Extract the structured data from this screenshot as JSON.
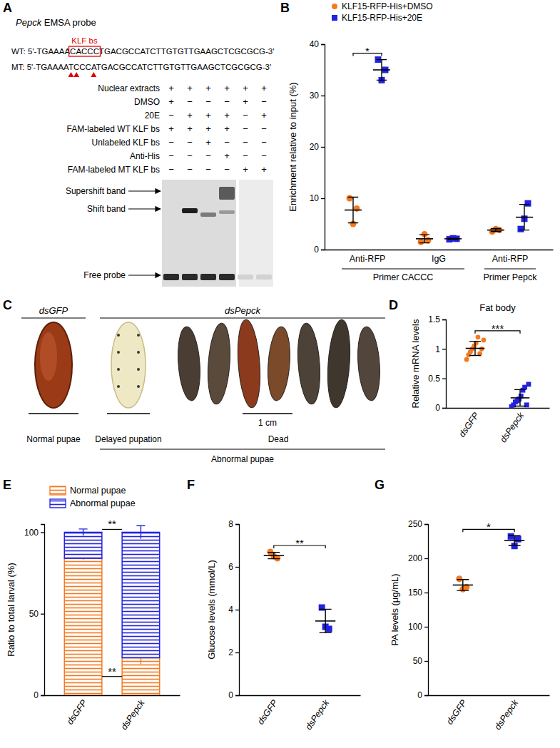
{
  "panel_labels": [
    "A",
    "B",
    "C",
    "D",
    "E",
    "F",
    "G"
  ],
  "panel_a": {
    "probe_title": "Pepck EMSA probe",
    "site_label": "KLF bs",
    "wt": {
      "prefix": "WT: 5'-TGAAAA",
      "site": "CACCC",
      "suffix": "TGACGCCATCTTGTGTTGAAGCTCGCGCG-3'"
    },
    "mt": "MT: 5'-TGAAAATCCCATGACGCCATCTTGTGTTGAAGCTCGCGCG-3'",
    "rows": [
      {
        "label": "Nuclear extracts",
        "lanes": [
          "+",
          "+",
          "+",
          "+",
          "+",
          "+"
        ]
      },
      {
        "label": "DMSO",
        "lanes": [
          "+",
          "−",
          "−",
          "−",
          "+",
          "−"
        ]
      },
      {
        "label": "20E",
        "lanes": [
          "−",
          "+",
          "+",
          "+",
          "−",
          "+"
        ]
      },
      {
        "label": "FAM-labeled WT KLF bs",
        "lanes": [
          "+",
          "+",
          "+",
          "+",
          "−",
          "−"
        ]
      },
      {
        "label": "Unlabeled KLF bs",
        "lanes": [
          "−",
          "−",
          "+",
          "−",
          "−",
          "−"
        ]
      },
      {
        "label": "Anti-His",
        "lanes": [
          "−",
          "−",
          "−",
          "+",
          "−",
          "−"
        ]
      },
      {
        "label": "FAM-labeled MT KLF bs",
        "lanes": [
          "−",
          "−",
          "−",
          "−",
          "+",
          "+"
        ]
      }
    ],
    "bands": [
      "Supershift band",
      "Shift band",
      "Free probe"
    ]
  },
  "panel_c": {
    "groups": [
      "dsGFP",
      "dsPepck"
    ],
    "captions": [
      "Normal pupae",
      "Delayed pupation",
      "Dead"
    ],
    "abnormal": "Abnormal pupae",
    "scale": "1 cm"
  },
  "chart_data": [
    {
      "type": "scatter",
      "ylabel": "Enrichment relative to input (%)",
      "categories": [
        "Anti-RFP",
        "IgG",
        "Anti-RFP"
      ],
      "category_groups": [
        "Primer CACCC",
        "Primer CACCC",
        "Primer Pepck"
      ],
      "ylim": [
        0,
        40
      ],
      "yticks": [
        0,
        10,
        20,
        30,
        40
      ],
      "legend": "top",
      "series": [
        {
          "name": "KLF15-RFP-His+DMSO",
          "color": "#f47920",
          "marker": "circle",
          "values": [
            [
              10,
              5,
              8
            ],
            [
              1.5,
              3,
              1.8
            ],
            [
              3.5,
              4,
              3.8
            ]
          ],
          "mean": [
            7.7,
            2.1,
            3.8
          ],
          "sd": [
            2.5,
            0.8,
            0.3
          ]
        },
        {
          "name": "KLF15-RFP-His+20E",
          "color": "#2222e0",
          "marker": "square",
          "values": [
            [
              37,
              33,
              35
            ],
            [
              2,
              2.2,
              2.1
            ],
            [
              4,
              6,
              9
            ]
          ],
          "mean": [
            35,
            2.1,
            6.3
          ],
          "sd": [
            2,
            0.1,
            2.5
          ]
        }
      ],
      "annotations": [
        {
          "text": "*",
          "category": 0
        }
      ]
    },
    {
      "type": "scatter",
      "title": "Fat body",
      "ylabel": "Relative mRNA levels",
      "categories": [
        "dsGFP",
        "dsPepck"
      ],
      "ylim": [
        0,
        1.5
      ],
      "yticks": [
        0,
        0.5,
        1,
        1.5
      ],
      "series": [
        {
          "color": "#f47920",
          "marker": "circle",
          "values": [
            [
              0.82,
              0.9,
              0.95,
              1.0,
              1.05,
              1.1,
              1.2,
              0.92,
              1.0,
              1.15
            ],
            null
          ],
          "mean": [
            1.01,
            null
          ],
          "sd": [
            0.12,
            null
          ]
        },
        {
          "color": "#2222e0",
          "marker": "square",
          "values": [
            null,
            [
              0.02,
              0.05,
              0.1,
              0.12,
              0.15,
              0.2,
              0.3,
              0.35,
              0.05,
              0.4
            ]
          ],
          "mean": [
            null,
            0.17
          ],
          "sd": [
            null,
            0.14
          ]
        }
      ],
      "annotations": [
        {
          "text": "***",
          "categories": [
            0,
            1
          ]
        }
      ]
    },
    {
      "type": "bar",
      "stacked": true,
      "ylabel": "Ratio to total larval (%)",
      "categories": [
        "dsGFP",
        "dsPepck"
      ],
      "ylim": [
        0,
        105
      ],
      "yticks": [
        0,
        50,
        100
      ],
      "legend": "top-left",
      "series": [
        {
          "name": "Normal pupae",
          "color": "#f47920",
          "values": [
            84,
            23
          ],
          "sd": [
            1,
            4
          ]
        },
        {
          "name": "Abnormal pupae",
          "color": "#2222e0",
          "values": [
            16,
            77
          ],
          "sd": [
            2,
            4
          ]
        }
      ],
      "annotations": [
        {
          "text": "**",
          "series": 1
        },
        {
          "text": "**",
          "series": 0
        }
      ]
    },
    {
      "type": "scatter",
      "ylabel": "Glucose levels (mmol/L)",
      "categories": [
        "dsGFP",
        "dsPepck"
      ],
      "ylim": [
        0,
        8
      ],
      "yticks": [
        0,
        2,
        4,
        6,
        8
      ],
      "series": [
        {
          "color": "#f47920",
          "marker": "circle",
          "values": [
            [
              6.7,
              6.5,
              6.4
            ],
            null
          ],
          "mean": [
            6.53,
            null
          ],
          "sd": [
            0.15,
            null
          ]
        },
        {
          "color": "#2222e0",
          "marker": "square",
          "values": [
            null,
            [
              4.1,
              3.2,
              3.1
            ]
          ],
          "mean": [
            null,
            3.47
          ],
          "sd": [
            null,
            0.55
          ]
        }
      ],
      "annotations": [
        {
          "text": "**",
          "categories": [
            0,
            1
          ]
        }
      ]
    },
    {
      "type": "scatter",
      "ylabel": "PA levels (μg/mL)",
      "categories": [
        "dsGFP",
        "dsPepck"
      ],
      "ylim": [
        0,
        250
      ],
      "yticks": [
        0,
        50,
        100,
        150,
        200,
        250
      ],
      "series": [
        {
          "color": "#f47920",
          "marker": "circle",
          "values": [
            [
              170,
              155,
              158
            ],
            null
          ],
          "mean": [
            161,
            null
          ],
          "sd": [
            8,
            null
          ]
        },
        {
          "color": "#2222e0",
          "marker": "square",
          "values": [
            null,
            [
              232,
              218,
              228
            ]
          ],
          "mean": [
            null,
            226
          ],
          "sd": [
            null,
            7
          ]
        }
      ],
      "annotations": [
        {
          "text": "*",
          "categories": [
            0,
            1
          ]
        }
      ]
    }
  ]
}
